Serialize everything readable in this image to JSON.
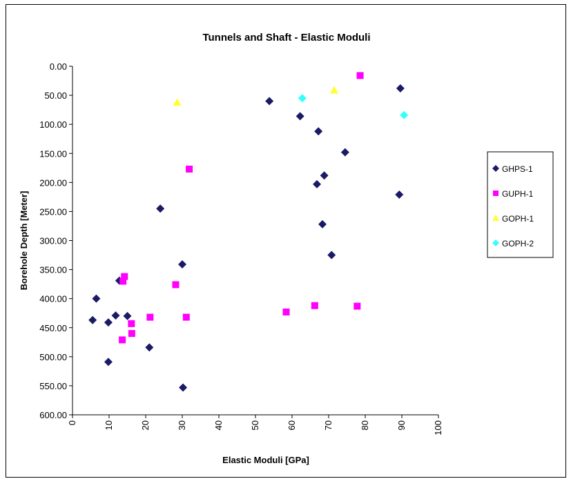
{
  "chart_data": {
    "type": "scatter",
    "title": "Tunnels and Shaft - Elastic Moduli",
    "xlabel": "Elastic Moduli [GPa]",
    "ylabel": "Borehole Depth [Meter]",
    "xlim": [
      0,
      100
    ],
    "ylim": [
      0,
      600
    ],
    "y_inverted": true,
    "x_ticks": [
      "0",
      "10",
      "20",
      "30",
      "40",
      "50",
      "60",
      "70",
      "80",
      "90",
      "100"
    ],
    "y_ticks": [
      "0.00",
      "50.00",
      "100.00",
      "150.00",
      "200.00",
      "250.00",
      "300.00",
      "350.00",
      "400.00",
      "450.00",
      "500.00",
      "550.00",
      "600.00"
    ],
    "grid": false,
    "legend_position": "right",
    "series": [
      {
        "name": "GHPS-1",
        "marker": "diamond",
        "color": "#1a1a66",
        "points": [
          {
            "x": 5.5,
            "y": 437
          },
          {
            "x": 6.5,
            "y": 400
          },
          {
            "x": 9.8,
            "y": 441
          },
          {
            "x": 9.8,
            "y": 509
          },
          {
            "x": 11.8,
            "y": 429
          },
          {
            "x": 12.8,
            "y": 369
          },
          {
            "x": 15.0,
            "y": 430
          },
          {
            "x": 21.0,
            "y": 484
          },
          {
            "x": 24.0,
            "y": 245
          },
          {
            "x": 30.0,
            "y": 341
          },
          {
            "x": 30.2,
            "y": 553
          },
          {
            "x": 53.8,
            "y": 60
          },
          {
            "x": 62.2,
            "y": 86
          },
          {
            "x": 66.8,
            "y": 203
          },
          {
            "x": 67.2,
            "y": 112
          },
          {
            "x": 68.3,
            "y": 272
          },
          {
            "x": 68.8,
            "y": 188
          },
          {
            "x": 70.8,
            "y": 325
          },
          {
            "x": 74.5,
            "y": 148
          },
          {
            "x": 89.3,
            "y": 221
          },
          {
            "x": 89.6,
            "y": 38
          }
        ]
      },
      {
        "name": "GUPH-1",
        "marker": "square",
        "color": "#ff00ff",
        "points": [
          {
            "x": 13.6,
            "y": 471
          },
          {
            "x": 13.8,
            "y": 370
          },
          {
            "x": 14.2,
            "y": 362
          },
          {
            "x": 16.1,
            "y": 443
          },
          {
            "x": 16.2,
            "y": 460
          },
          {
            "x": 21.2,
            "y": 432
          },
          {
            "x": 28.2,
            "y": 376
          },
          {
            "x": 31.1,
            "y": 432
          },
          {
            "x": 31.9,
            "y": 177
          },
          {
            "x": 58.4,
            "y": 423
          },
          {
            "x": 66.2,
            "y": 412
          },
          {
            "x": 77.8,
            "y": 413
          },
          {
            "x": 78.6,
            "y": 16
          }
        ]
      },
      {
        "name": "GOPH-1",
        "marker": "triangle",
        "color": "#ffff33",
        "points": [
          {
            "x": 28.6,
            "y": 62
          },
          {
            "x": 71.5,
            "y": 41
          }
        ]
      },
      {
        "name": "GOPH-2",
        "marker": "diamond",
        "color": "#33ffff",
        "points": [
          {
            "x": 62.8,
            "y": 55
          },
          {
            "x": 90.6,
            "y": 84
          }
        ]
      }
    ]
  }
}
